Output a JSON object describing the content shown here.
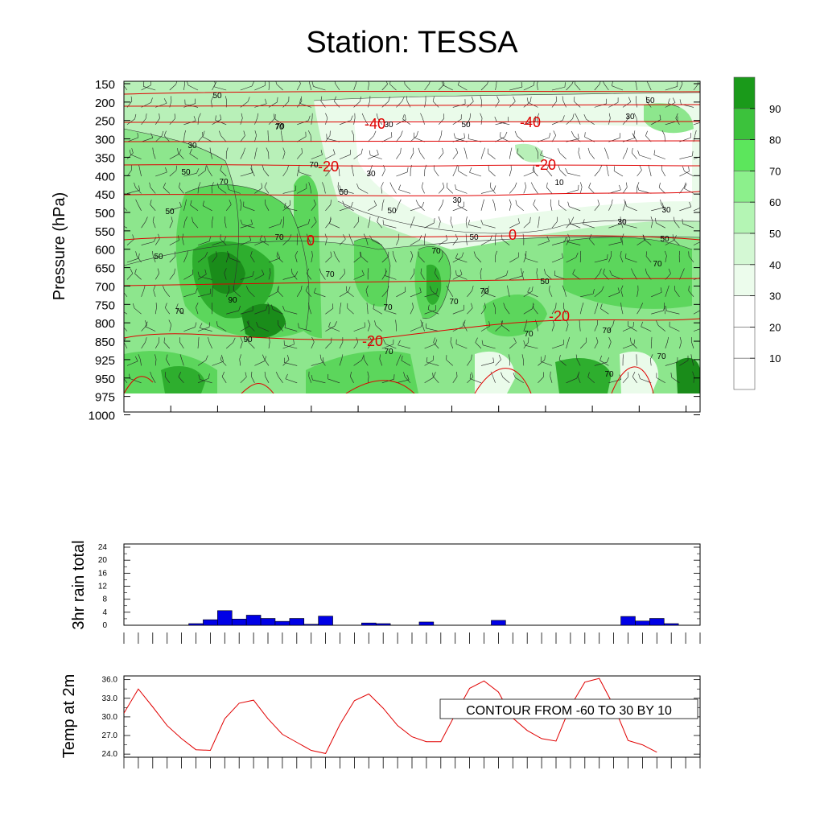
{
  "title": "Station: TESSA",
  "cross_section": {
    "ylabel": "Pressure (hPa)",
    "pressure_levels": [
      "150",
      "200",
      "250",
      "300",
      "350",
      "400",
      "450",
      "500",
      "550",
      "600",
      "650",
      "700",
      "750",
      "800",
      "850",
      "925",
      "950",
      "975",
      "1000"
    ],
    "isotherm_labels": [
      "-40",
      "-40",
      "-20",
      "-20",
      "0",
      "0",
      "-20",
      "-20"
    ],
    "rh_labels": [
      "50",
      "70",
      "30",
      "50",
      "70",
      "50",
      "70",
      "70",
      "50",
      "70",
      "90",
      "90",
      "70",
      "70",
      "50",
      "30",
      "30",
      "50",
      "70",
      "70",
      "70",
      "50",
      "70",
      "70",
      "70",
      "70",
      "30",
      "50",
      "50",
      "70",
      "70",
      "70",
      "30",
      "30",
      "50",
      "10",
      "30",
      "50"
    ],
    "colorbar_labels": [
      "90",
      "80",
      "70",
      "60",
      "50",
      "40",
      "30",
      "20",
      "10"
    ],
    "colorbar_colors": [
      "#1a9a1a",
      "#3cc23c",
      "#5ce65c",
      "#8cf08c",
      "#b4f5b4",
      "#d4f8d4",
      "#ecfcec",
      "#ffffff",
      "#ffffff",
      "#ffffff"
    ]
  },
  "chart_data": [
    {
      "type": "bar",
      "title": "",
      "ylabel": "3hr rain total",
      "ylim": [
        0,
        24
      ],
      "yticks": [
        "24",
        "20",
        "16",
        "12",
        "8",
        "4",
        "0"
      ],
      "time_index": [
        5,
        6,
        7,
        8,
        9,
        10,
        11,
        12,
        13,
        14,
        15,
        16,
        17,
        18,
        19,
        20,
        21,
        22,
        23,
        24,
        25,
        26,
        27,
        28,
        29,
        30,
        31,
        32,
        33,
        34,
        35,
        36,
        37,
        38,
        39
      ],
      "values": [
        0.5,
        1.7,
        4.5,
        1.9,
        3.1,
        2.1,
        1.2,
        2.1,
        0.3,
        2.8,
        0,
        0,
        0.7,
        0.5,
        0,
        0,
        1.0,
        0,
        0,
        0,
        0,
        1.5,
        0,
        0,
        0,
        0,
        0,
        0,
        0,
        0,
        2.7,
        1.3,
        2.1,
        0.5,
        0
      ]
    },
    {
      "type": "line",
      "title": "",
      "ylabel": "Temp at 2m",
      "ylim": [
        23.5,
        36.6
      ],
      "yticks": [
        "36.0",
        "33.0",
        "30.0",
        "27.0",
        "24.0"
      ],
      "time_index": [
        0,
        1,
        2,
        3,
        4,
        5,
        6,
        7,
        8,
        9,
        10,
        11,
        12,
        13,
        14,
        15,
        16,
        17,
        18,
        19,
        20,
        21,
        22,
        23,
        24,
        25,
        26,
        27,
        28,
        29,
        30,
        31,
        32,
        33,
        34,
        35,
        36,
        37
      ],
      "values": [
        30.6,
        34.5,
        31.6,
        28.6,
        26.5,
        24.7,
        24.6,
        29.7,
        32.2,
        32.7,
        29.7,
        27.2,
        25.9,
        24.6,
        24.1,
        28.8,
        32.6,
        33.7,
        31.4,
        28.6,
        26.8,
        26.0,
        26.0,
        30.4,
        34.6,
        35.8,
        34.0,
        29.8,
        27.8,
        26.5,
        26.1,
        31.7,
        35.6,
        36.2,
        31.8,
        26.2,
        25.5,
        24.3
      ]
    }
  ],
  "info_box": "CONTOUR FROM -60 TO 30 BY 10"
}
